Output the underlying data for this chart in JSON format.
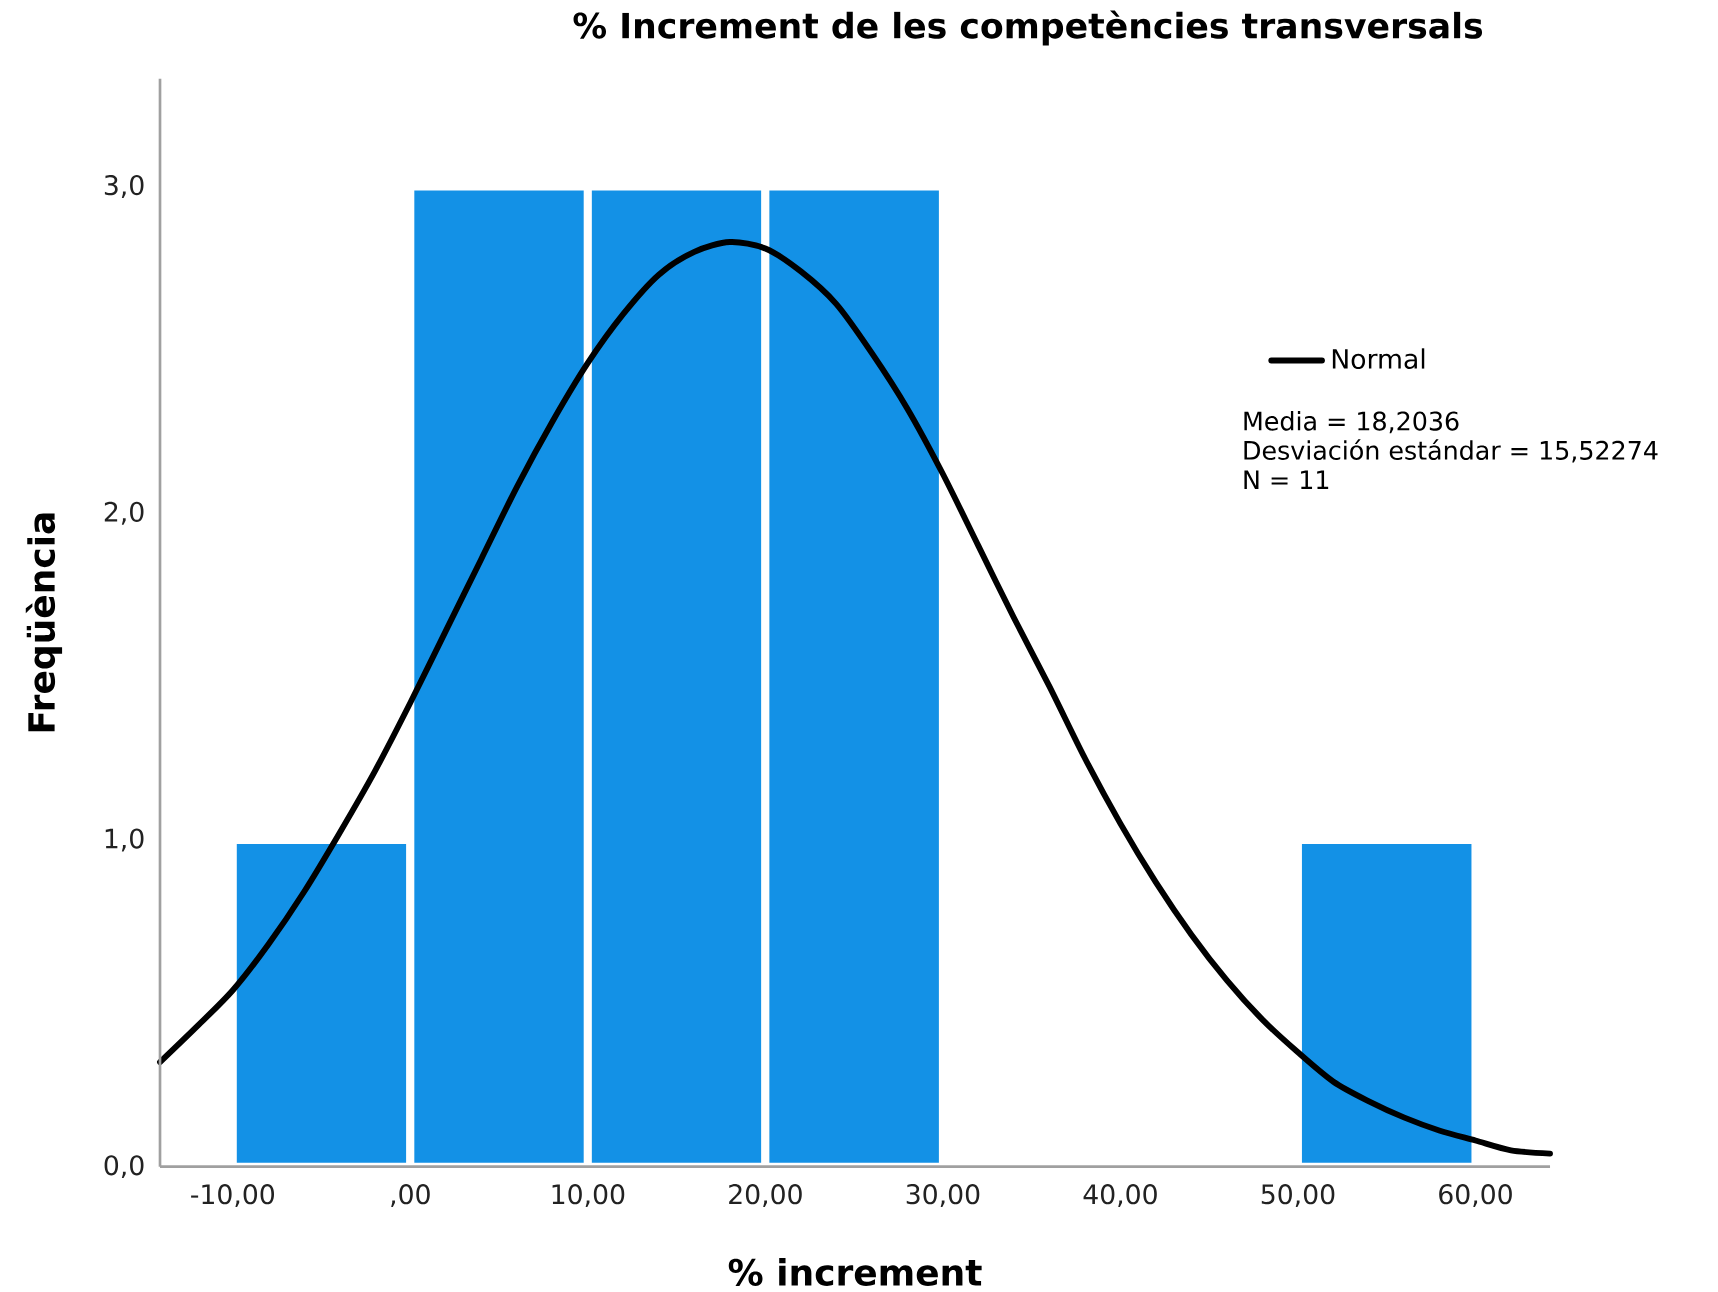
{
  "chart_data": {
    "type": "histogram",
    "title": "% Increment de les competències transversals",
    "xlabel": "% increment",
    "ylabel": "Freqüència",
    "bins": [
      -10,
      0,
      10,
      20,
      30,
      40,
      50,
      60
    ],
    "values": [
      1,
      3,
      3,
      3,
      0,
      0,
      1
    ],
    "color": "#1391e6",
    "series": [
      {
        "name": "Normal",
        "type": "line",
        "color": "#000000",
        "x": [
          -14.1,
          -12,
          -10,
          -8,
          -6,
          -4,
          -2,
          0,
          2,
          4,
          6,
          8,
          10,
          12,
          14,
          16,
          18,
          20,
          22,
          24,
          26,
          28,
          30,
          32,
          34,
          36,
          38,
          40,
          42,
          44,
          46,
          48,
          50,
          52,
          54,
          56,
          58,
          60,
          62,
          64.2
        ],
        "values": [
          0.32,
          0.43,
          0.54,
          0.68,
          0.84,
          1.02,
          1.21,
          1.42,
          1.64,
          1.86,
          2.08,
          2.28,
          2.46,
          2.61,
          2.73,
          2.8,
          2.83,
          2.81,
          2.74,
          2.64,
          2.49,
          2.32,
          2.12,
          1.9,
          1.68,
          1.47,
          1.25,
          1.05,
          0.87,
          0.71,
          0.57,
          0.45,
          0.35,
          0.26,
          0.2,
          0.15,
          0.11,
          0.08,
          0.05,
          0.04
        ]
      }
    ],
    "xlim": [
      -14.1,
      64.2
    ],
    "ylim": [
      0,
      3.33
    ],
    "xticks": [
      {
        "value": -10,
        "label": "-10,00"
      },
      {
        "value": 0,
        "label": ",00"
      },
      {
        "value": 10,
        "label": "10,00"
      },
      {
        "value": 20,
        "label": "20,00"
      },
      {
        "value": 30,
        "label": "30,00"
      },
      {
        "value": 40,
        "label": "40,00"
      },
      {
        "value": 50,
        "label": "50,00"
      },
      {
        "value": 60,
        "label": "60,00"
      }
    ],
    "yticks": [
      {
        "value": 0,
        "label": "0,0"
      },
      {
        "value": 1,
        "label": "1,0"
      },
      {
        "value": 2,
        "label": "2,0"
      },
      {
        "value": 3,
        "label": "3,0"
      }
    ],
    "legend": "top right",
    "annotations": [
      "Media = 18,2036",
      "Desviación estándar = 15,52274",
      "N = 11"
    ]
  }
}
